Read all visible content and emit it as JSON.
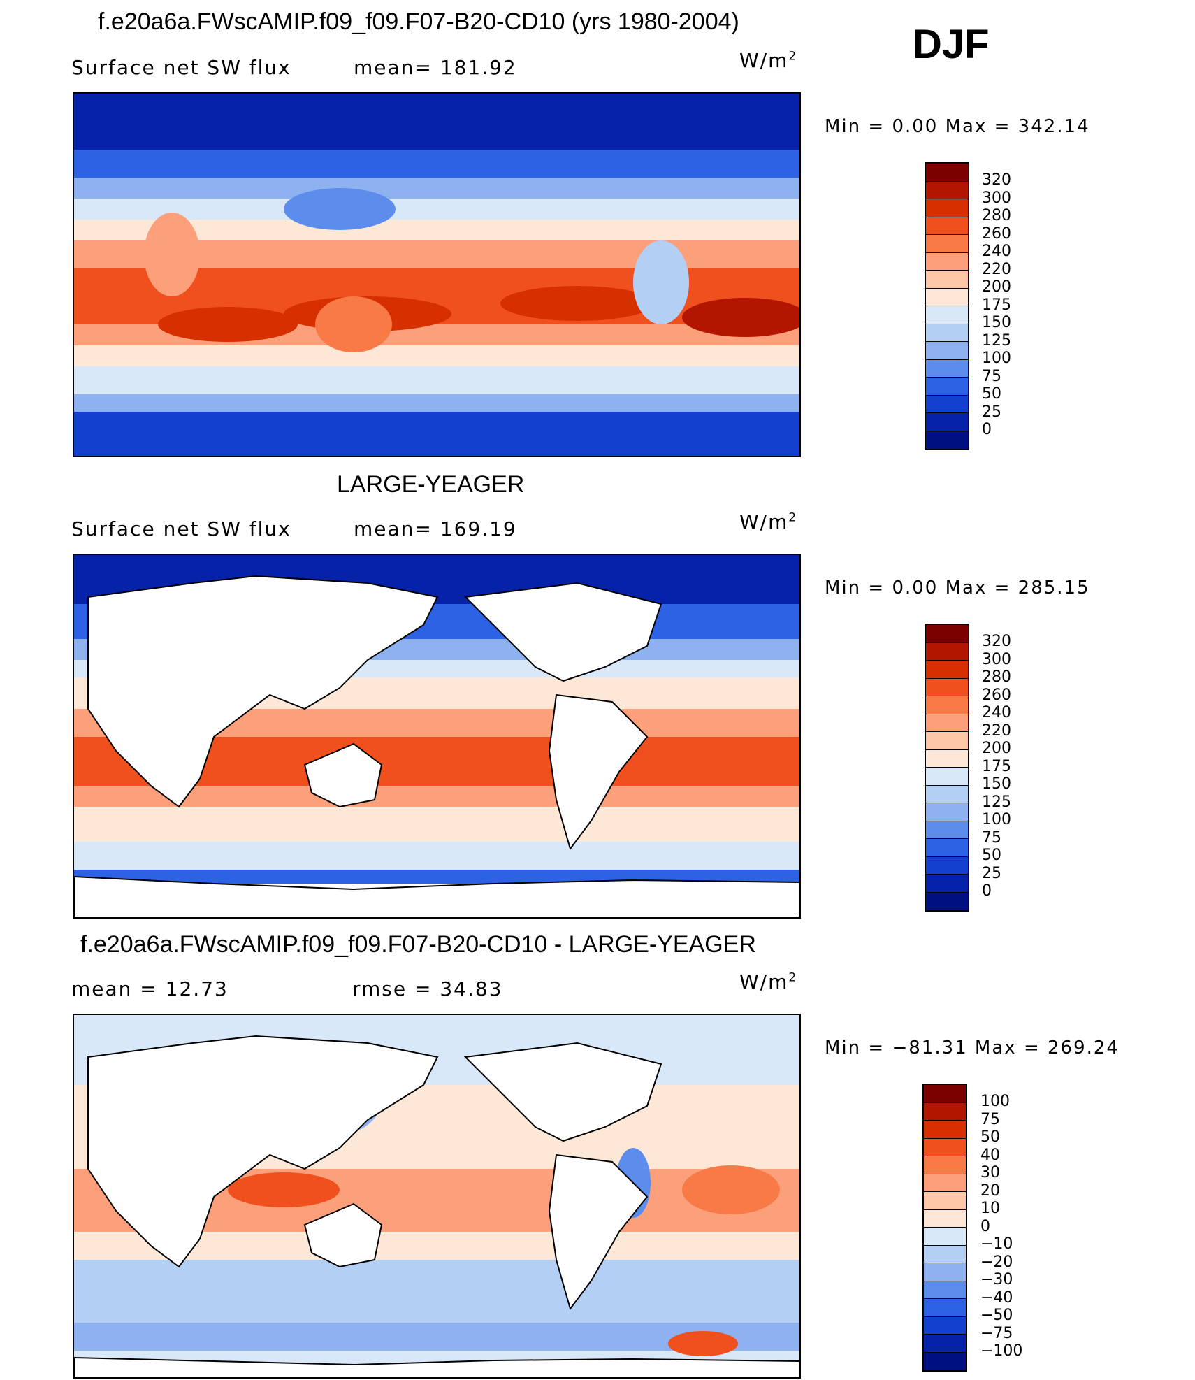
{
  "season": "DJF",
  "units": "W/m",
  "units_sup": "2",
  "panels": [
    {
      "title": "f.e20a6a.FWscAMIP.f09_f09.F07-B20-CD10 (yrs 1980-2004)",
      "left_label": "Surface net SW flux",
      "right_label": "mean=  181.92",
      "minmax": "Min  =    0.00  Max  =  342.14",
      "colorbar_levels": [
        "320",
        "300",
        "280",
        "260",
        "240",
        "220",
        "200",
        "175",
        "150",
        "125",
        "100",
        "75",
        "50",
        "25",
        "0"
      ],
      "colorbar_colors": [
        "#7b0000",
        "#b21500",
        "#d63000",
        "#f0501e",
        "#f87a46",
        "#fba07a",
        "#fdc7a8",
        "#fde8d8",
        "#d8e8f8",
        "#b4cff4",
        "#8eb2f0",
        "#5c8cec",
        "#2d62e4",
        "#1440d0",
        "#0622a8",
        "#001080"
      ]
    },
    {
      "title": "LARGE-YEAGER",
      "left_label": "Surface net SW flux",
      "right_label": "mean=  169.19",
      "minmax": "Min  =    0.00  Max  =  285.15",
      "colorbar_levels": [
        "320",
        "300",
        "280",
        "260",
        "240",
        "220",
        "200",
        "175",
        "150",
        "125",
        "100",
        "75",
        "50",
        "25",
        "0"
      ],
      "colorbar_colors": [
        "#7b0000",
        "#b21500",
        "#d63000",
        "#f0501e",
        "#f87a46",
        "#fba07a",
        "#fdc7a8",
        "#fde8d8",
        "#d8e8f8",
        "#b4cff4",
        "#8eb2f0",
        "#5c8cec",
        "#2d62e4",
        "#1440d0",
        "#0622a8",
        "#001080"
      ]
    },
    {
      "title": "f.e20a6a.FWscAMIP.f09_f09.F07-B20-CD10 - LARGE-YEAGER",
      "left_label": "mean  =    12.73",
      "right_label": "rmse  =    34.83",
      "minmax": "Min  = −81.31  Max  =  269.24",
      "colorbar_levels": [
        "100",
        "75",
        "50",
        "40",
        "30",
        "20",
        "10",
        "0",
        "−10",
        "−20",
        "−30",
        "−40",
        "−50",
        "−75",
        "−100"
      ],
      "colorbar_colors": [
        "#7b0000",
        "#b21500",
        "#d63000",
        "#f0501e",
        "#f87a46",
        "#fba07a",
        "#fdc7a8",
        "#fde8d8",
        "#d8e8f8",
        "#b4cff4",
        "#8eb2f0",
        "#5c8cec",
        "#2d62e4",
        "#1440d0",
        "#0622a8",
        "#001080"
      ]
    }
  ]
}
